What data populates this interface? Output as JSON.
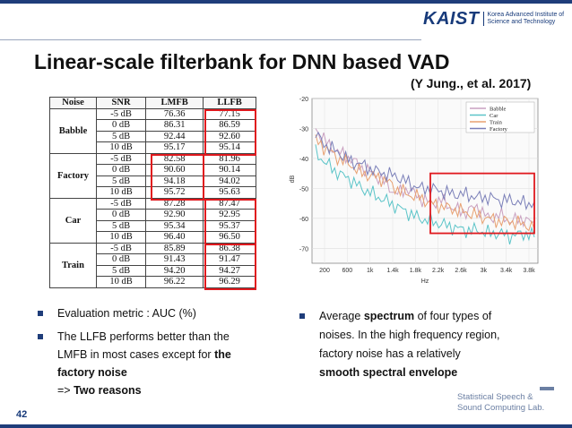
{
  "header": {
    "logo_word": "KAIST",
    "logo_line1": "Korea Advanced Institute of",
    "logo_line2": "Science and Technology"
  },
  "slide": {
    "title": "Linear-scale filterbank for DNN based VAD",
    "citation": "(Y Jung., et al. 2017)",
    "page_number": "42"
  },
  "table": {
    "headers": [
      "Noise",
      "SNR",
      "LMFB",
      "LLFB"
    ],
    "groups": [
      {
        "noise": "Babble",
        "rows": [
          [
            "-5 dB",
            "76.36",
            "77.15"
          ],
          [
            "0 dB",
            "86.31",
            "86.59"
          ],
          [
            "5 dB",
            "92.44",
            "92.60"
          ],
          [
            "10 dB",
            "95.17",
            "95.14"
          ]
        ]
      },
      {
        "noise": "Factory",
        "rows": [
          [
            "-5 dB",
            "82.58",
            "81.96"
          ],
          [
            "0 dB",
            "90.60",
            "90.14"
          ],
          [
            "5 dB",
            "94.18",
            "94.02"
          ],
          [
            "10 dB",
            "95.72",
            "95.63"
          ]
        ]
      },
      {
        "noise": "Car",
        "rows": [
          [
            "-5 dB",
            "87.28",
            "87.47"
          ],
          [
            "0 dB",
            "92.90",
            "92.95"
          ],
          [
            "5 dB",
            "95.34",
            "95.37"
          ],
          [
            "10 dB",
            "96.40",
            "96.50"
          ]
        ]
      },
      {
        "noise": "Train",
        "rows": [
          [
            "-5 dB",
            "85.89",
            "86.38"
          ],
          [
            "0 dB",
            "91.43",
            "91.47"
          ],
          [
            "5 dB",
            "94.20",
            "94.27"
          ],
          [
            "10 dB",
            "96.22",
            "96.29"
          ]
        ]
      }
    ]
  },
  "chart_data": {
    "type": "line",
    "title": "",
    "xlabel": "Hz",
    "ylabel": "dB",
    "ylim": [
      -75,
      -20
    ],
    "xticks": [
      "200",
      "600",
      "1k",
      "1.4k",
      "1.8k",
      "2.2k",
      "2.6k",
      "3k",
      "3.4k",
      "3.8k"
    ],
    "yticks": [
      "-20",
      "-30",
      "-40",
      "-50",
      "-60",
      "-70"
    ],
    "legend_position": "top-right",
    "series": [
      {
        "name": "Babble",
        "color": "#c9a0c0",
        "values": [
          -30,
          -35,
          -38,
          -40,
          -43,
          -45,
          -48,
          -52,
          -50,
          -53,
          -55,
          -54,
          -57,
          -58,
          -56,
          -60,
          -59,
          -61,
          -60,
          -62
        ]
      },
      {
        "name": "Car",
        "color": "#5bc4c8",
        "values": [
          -38,
          -42,
          -45,
          -47,
          -50,
          -52,
          -54,
          -56,
          -58,
          -60,
          -61,
          -62,
          -63,
          -64,
          -64,
          -65,
          -65,
          -66,
          -65,
          -66
        ]
      },
      {
        "name": "Train",
        "color": "#e8a070",
        "values": [
          -34,
          -37,
          -40,
          -42,
          -45,
          -46,
          -47,
          -50,
          -52,
          -53,
          -55,
          -56,
          -57,
          -58,
          -59,
          -60,
          -61,
          -61,
          -62,
          -63
        ]
      },
      {
        "name": "Factory",
        "color": "#7a7fb8",
        "values": [
          -32,
          -36,
          -38,
          -41,
          -42,
          -44,
          -45,
          -46,
          -48,
          -50,
          -50,
          -51,
          -52,
          -52,
          -53,
          -53,
          -54,
          -54,
          -55,
          -55
        ]
      }
    ]
  },
  "bullets_left": {
    "b1": "Evaluation metric : AUC (%)",
    "b2_line1": "The LLFB performs better than the",
    "b2_line2": "LMFB in most cases except for",
    "b2_bold": "the",
    "b2_line3": "factory noise",
    "b2_line4_prefix": "=>",
    "b2_line4_bold": "Two reasons"
  },
  "bullets_right": {
    "line1_pre": "Average",
    "line1_bold": "spectrum",
    "line1_post": "of four types of",
    "line2": "noises. In the high frequency region,",
    "line3": "factory noise has a relatively",
    "line4_bold": "smooth spectral envelope"
  },
  "footer": {
    "lab_line1": "Statistical Speech &",
    "lab_line2": "Sound Computing Lab."
  }
}
